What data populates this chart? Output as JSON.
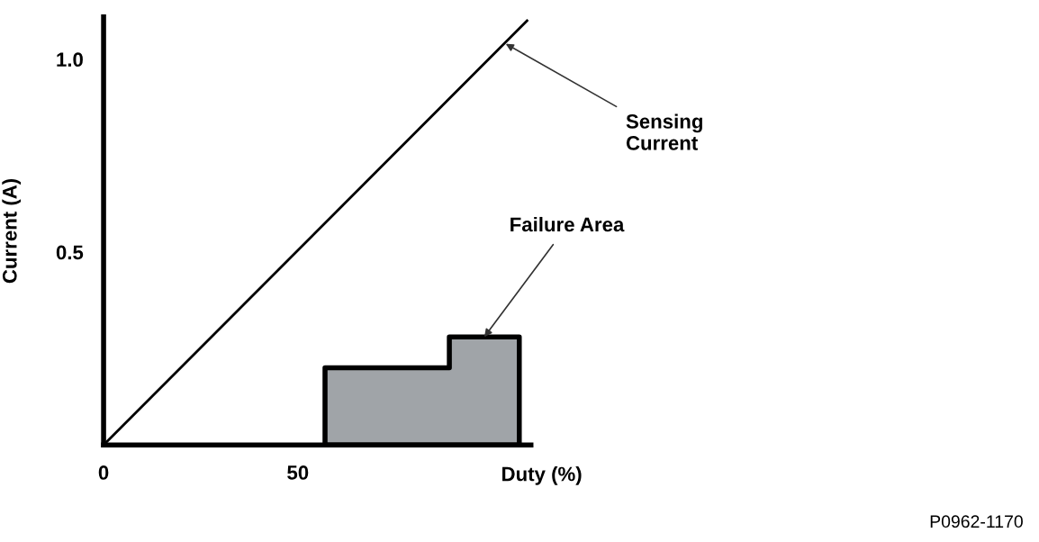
{
  "chart_data": {
    "type": "line",
    "xlabel": "Duty (%)",
    "ylabel": "Current (A)",
    "xlim": [
      0,
      110
    ],
    "ylim": [
      0,
      1.11
    ],
    "xticks": [
      0,
      50
    ],
    "yticks": [
      0.5,
      {
        "value": 1.0,
        "label": "1.0"
      }
    ],
    "grid": false,
    "legend": false,
    "marker": "none",
    "series": [
      {
        "color": "#000000",
        "x": [
          0,
          109
        ],
        "values": [
          0,
          1.1
        ]
      },
      {
        "type": "area",
        "color": "#a0a4a8",
        "x": [
          57,
          57,
          89,
          89,
          107,
          107
        ],
        "values": [
          0,
          0.2,
          0.2,
          0.28,
          0.28,
          0
        ]
      }
    ],
    "annotations": [
      {
        "text": "Sensing\nCurrent",
        "x": 103.5,
        "y": 1.04
      },
      {
        "text": "Failure Area",
        "x": 98,
        "y": 0.28
      },
      "P0962-1170"
    ]
  }
}
